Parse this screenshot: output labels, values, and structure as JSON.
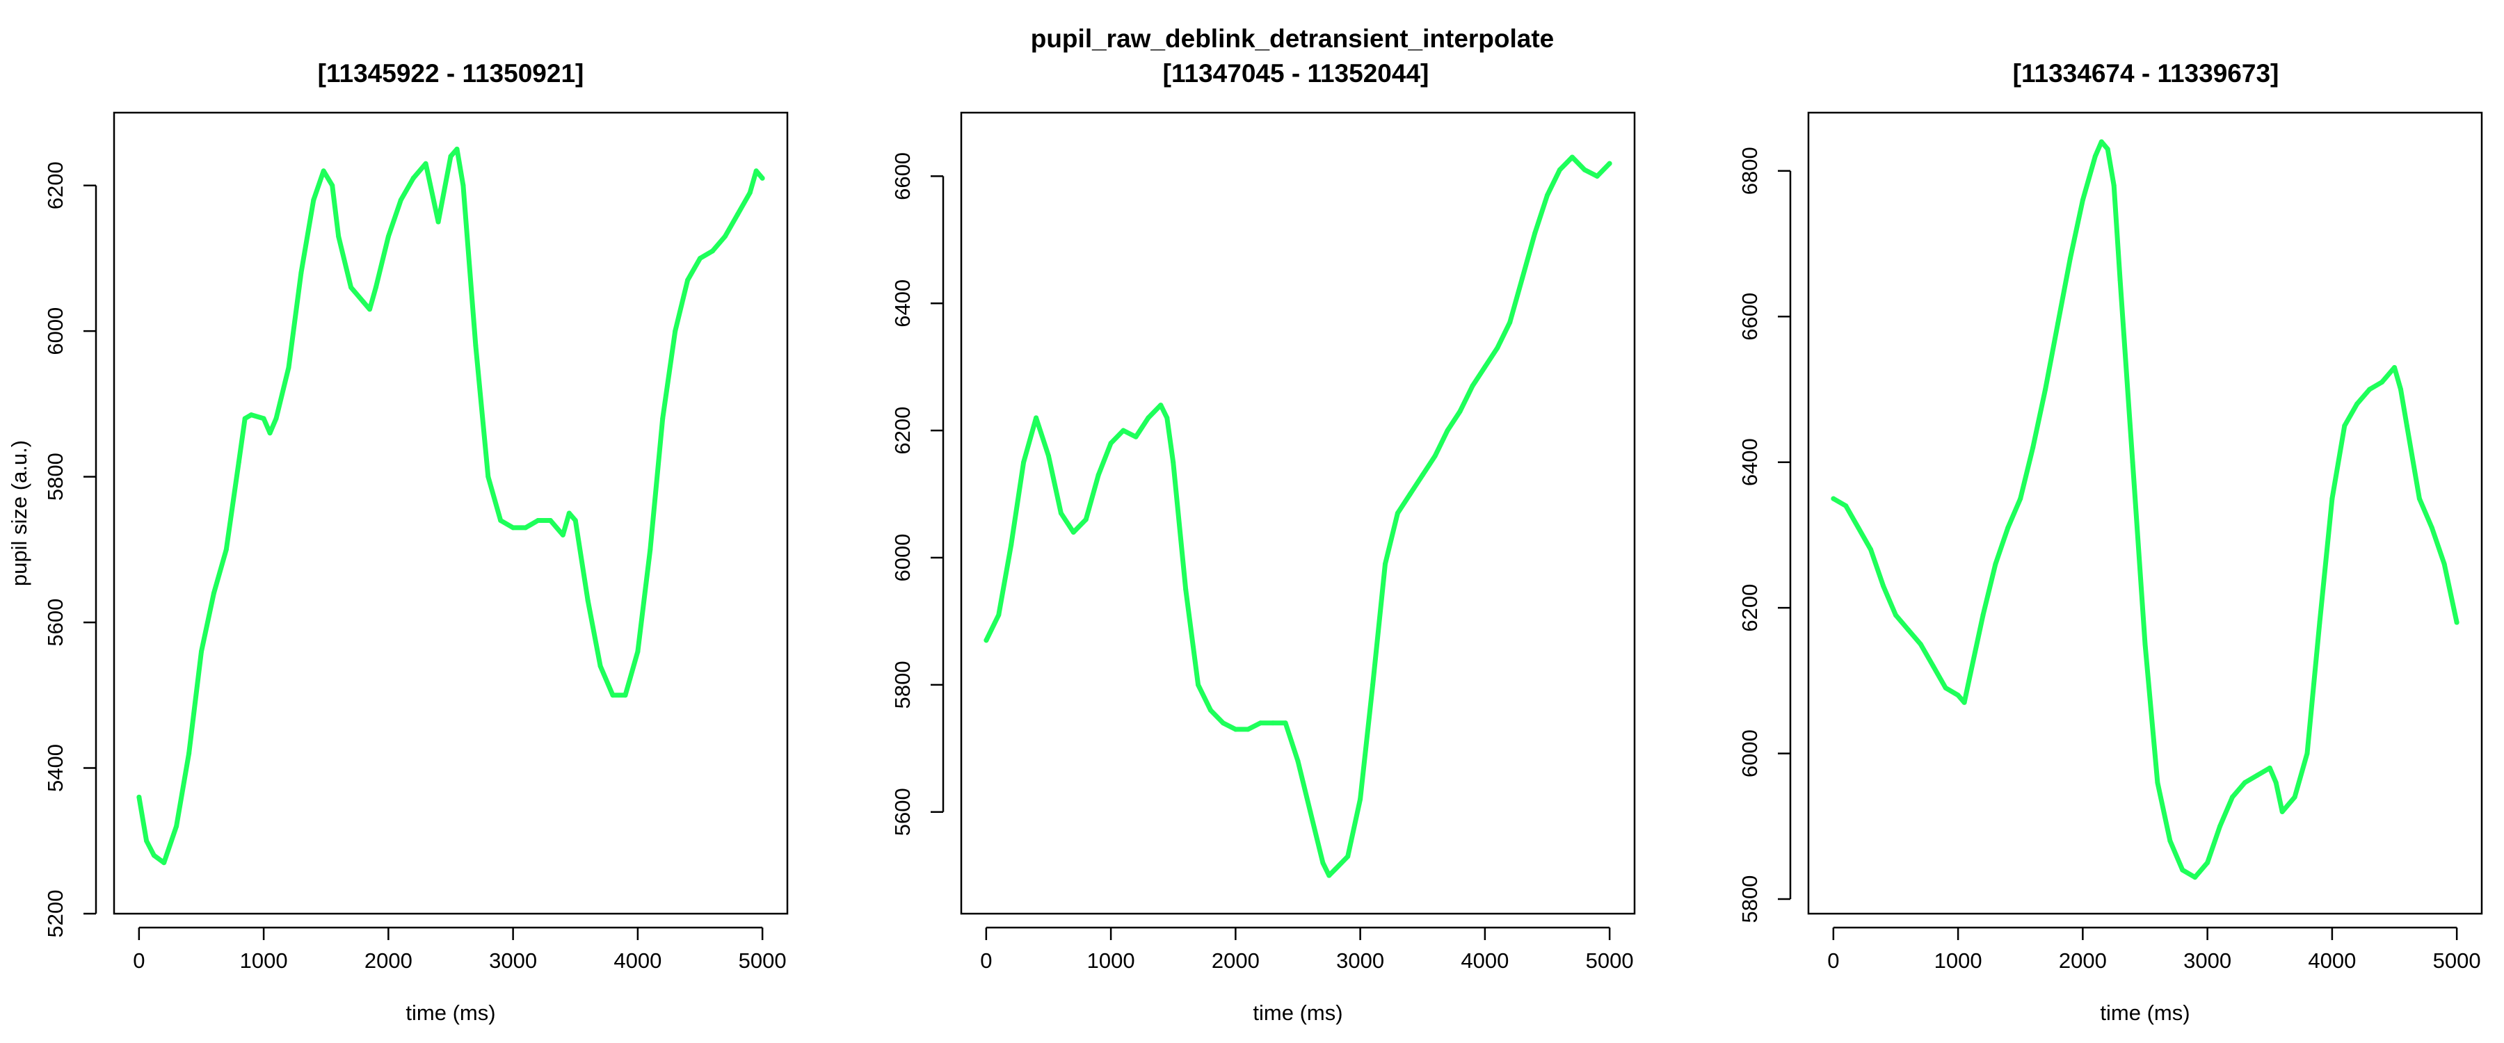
{
  "figure": {
    "title": "pupil_raw_deblink_detransient_interpolate",
    "line_color": "#1EFF5A"
  },
  "chart_data": [
    {
      "type": "line",
      "title": "[11345922 - 11350921]",
      "xlabel": "time (ms)",
      "ylabel": "pupil size (a.u.)",
      "xlim": [
        0,
        5000
      ],
      "ylim": [
        5200,
        6300
      ],
      "xticks": [
        0,
        1000,
        2000,
        3000,
        4000,
        5000
      ],
      "yticks": [
        5200,
        5400,
        5600,
        5800,
        6000,
        6200
      ],
      "grid": false,
      "series": [
        {
          "color": "#1EFF5A",
          "x": [
            0,
            60,
            120,
            200,
            300,
            400,
            500,
            600,
            700,
            800,
            850,
            900,
            1000,
            1050,
            1100,
            1200,
            1300,
            1400,
            1480,
            1550,
            1600,
            1700,
            1800,
            1850,
            1900,
            2000,
            2100,
            2200,
            2300,
            2400,
            2500,
            2550,
            2600,
            2700,
            2800,
            2900,
            3000,
            3100,
            3200,
            3300,
            3400,
            3450,
            3500,
            3600,
            3700,
            3800,
            3900,
            4000,
            4100,
            4200,
            4300,
            4400,
            4500,
            4600,
            4700,
            4800,
            4900,
            4950,
            5000
          ],
          "y": [
            5360,
            5300,
            5280,
            5270,
            5320,
            5420,
            5560,
            5640,
            5700,
            5820,
            5880,
            5885,
            5880,
            5860,
            5880,
            5950,
            6080,
            6180,
            6220,
            6200,
            6130,
            6060,
            6040,
            6030,
            6060,
            6130,
            6180,
            6210,
            6230,
            6150,
            6240,
            6250,
            6200,
            5980,
            5800,
            5740,
            5730,
            5730,
            5740,
            5740,
            5720,
            5750,
            5740,
            5630,
            5540,
            5500,
            5500,
            5560,
            5700,
            5880,
            6000,
            6070,
            6100,
            6110,
            6130,
            6160,
            6190,
            6220,
            6210
          ]
        }
      ]
    },
    {
      "type": "line",
      "title": "[11347045 - 11352044]",
      "xlabel": "time (ms)",
      "ylabel": "",
      "xlim": [
        0,
        5000
      ],
      "ylim": [
        5440,
        6700
      ],
      "xticks": [
        0,
        1000,
        2000,
        3000,
        4000,
        5000
      ],
      "yticks": [
        5600,
        5800,
        6000,
        6200,
        6400,
        6600
      ],
      "grid": false,
      "series": [
        {
          "color": "#1EFF5A",
          "x": [
            0,
            100,
            200,
            300,
            400,
            500,
            600,
            700,
            800,
            900,
            1000,
            1100,
            1200,
            1300,
            1400,
            1450,
            1500,
            1600,
            1700,
            1800,
            1900,
            2000,
            2100,
            2200,
            2300,
            2400,
            2500,
            2600,
            2700,
            2750,
            2800,
            2900,
            3000,
            3100,
            3200,
            3300,
            3400,
            3500,
            3600,
            3700,
            3800,
            3900,
            4000,
            4100,
            4200,
            4300,
            4400,
            4500,
            4600,
            4700,
            4800,
            4900,
            5000
          ],
          "y": [
            5870,
            5910,
            6020,
            6150,
            6220,
            6160,
            6070,
            6040,
            6060,
            6130,
            6180,
            6200,
            6190,
            6220,
            6240,
            6220,
            6150,
            5950,
            5800,
            5760,
            5740,
            5730,
            5730,
            5740,
            5740,
            5740,
            5680,
            5600,
            5520,
            5500,
            5510,
            5530,
            5620,
            5800,
            5990,
            6070,
            6100,
            6130,
            6160,
            6200,
            6230,
            6270,
            6300,
            6330,
            6370,
            6440,
            6510,
            6570,
            6610,
            6630,
            6610,
            6600,
            6620
          ]
        }
      ]
    },
    {
      "type": "line",
      "title": "[11334674 - 11339673]",
      "xlabel": "time (ms)",
      "ylabel": "",
      "xlim": [
        0,
        5000
      ],
      "ylim": [
        5780,
        6880
      ],
      "xticks": [
        0,
        1000,
        2000,
        3000,
        4000,
        5000
      ],
      "yticks": [
        5800,
        6000,
        6200,
        6400,
        6600,
        6800
      ],
      "grid": false,
      "series": [
        {
          "color": "#1EFF5A",
          "x": [
            0,
            100,
            200,
            300,
            400,
            500,
            600,
            700,
            800,
            900,
            1000,
            1050,
            1100,
            1200,
            1300,
            1400,
            1500,
            1600,
            1700,
            1800,
            1900,
            2000,
            2100,
            2150,
            2200,
            2250,
            2300,
            2400,
            2500,
            2600,
            2700,
            2800,
            2900,
            3000,
            3100,
            3200,
            3300,
            3400,
            3500,
            3550,
            3600,
            3700,
            3800,
            3900,
            4000,
            4100,
            4200,
            4300,
            4400,
            4500,
            4550,
            4600,
            4700,
            4800,
            4900,
            5000
          ],
          "y": [
            6350,
            6340,
            6310,
            6280,
            6230,
            6190,
            6170,
            6150,
            6120,
            6090,
            6080,
            6070,
            6110,
            6190,
            6260,
            6310,
            6350,
            6420,
            6500,
            6590,
            6680,
            6760,
            6820,
            6840,
            6830,
            6780,
            6650,
            6400,
            6150,
            5960,
            5880,
            5840,
            5830,
            5850,
            5900,
            5940,
            5960,
            5970,
            5980,
            5960,
            5920,
            5940,
            6000,
            6180,
            6350,
            6450,
            6480,
            6500,
            6510,
            6530,
            6500,
            6450,
            6350,
            6310,
            6260,
            6180
          ]
        }
      ]
    }
  ]
}
